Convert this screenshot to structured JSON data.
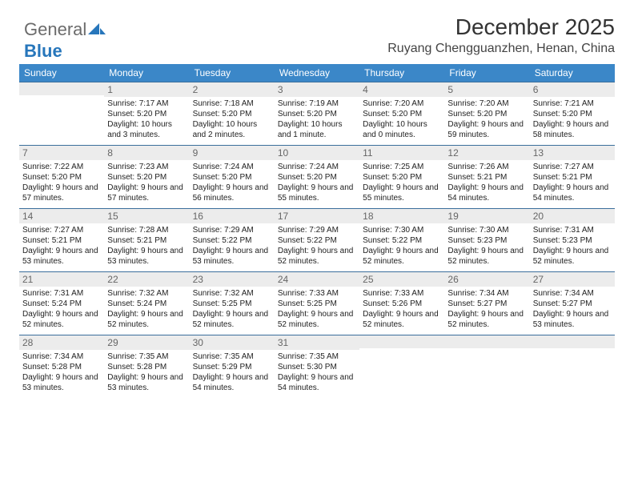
{
  "brand": {
    "part1": "General",
    "part2": "Blue"
  },
  "title": "December 2025",
  "location": "Ruyang Chengguanzhen, Henan, China",
  "colors": {
    "header_bg": "#3b87c8",
    "header_text": "#ffffff",
    "daynum_bg": "#ececec",
    "daynum_text": "#666666",
    "border": "#3b6f9c",
    "brand_gray": "#6b6b6b",
    "brand_blue": "#2776bb"
  },
  "weekdays": [
    "Sunday",
    "Monday",
    "Tuesday",
    "Wednesday",
    "Thursday",
    "Friday",
    "Saturday"
  ],
  "weeks": [
    [
      {
        "n": "",
        "sr": "",
        "ss": "",
        "dl": ""
      },
      {
        "n": "1",
        "sr": "Sunrise: 7:17 AM",
        "ss": "Sunset: 5:20 PM",
        "dl": "Daylight: 10 hours and 3 minutes."
      },
      {
        "n": "2",
        "sr": "Sunrise: 7:18 AM",
        "ss": "Sunset: 5:20 PM",
        "dl": "Daylight: 10 hours and 2 minutes."
      },
      {
        "n": "3",
        "sr": "Sunrise: 7:19 AM",
        "ss": "Sunset: 5:20 PM",
        "dl": "Daylight: 10 hours and 1 minute."
      },
      {
        "n": "4",
        "sr": "Sunrise: 7:20 AM",
        "ss": "Sunset: 5:20 PM",
        "dl": "Daylight: 10 hours and 0 minutes."
      },
      {
        "n": "5",
        "sr": "Sunrise: 7:20 AM",
        "ss": "Sunset: 5:20 PM",
        "dl": "Daylight: 9 hours and 59 minutes."
      },
      {
        "n": "6",
        "sr": "Sunrise: 7:21 AM",
        "ss": "Sunset: 5:20 PM",
        "dl": "Daylight: 9 hours and 58 minutes."
      }
    ],
    [
      {
        "n": "7",
        "sr": "Sunrise: 7:22 AM",
        "ss": "Sunset: 5:20 PM",
        "dl": "Daylight: 9 hours and 57 minutes."
      },
      {
        "n": "8",
        "sr": "Sunrise: 7:23 AM",
        "ss": "Sunset: 5:20 PM",
        "dl": "Daylight: 9 hours and 57 minutes."
      },
      {
        "n": "9",
        "sr": "Sunrise: 7:24 AM",
        "ss": "Sunset: 5:20 PM",
        "dl": "Daylight: 9 hours and 56 minutes."
      },
      {
        "n": "10",
        "sr": "Sunrise: 7:24 AM",
        "ss": "Sunset: 5:20 PM",
        "dl": "Daylight: 9 hours and 55 minutes."
      },
      {
        "n": "11",
        "sr": "Sunrise: 7:25 AM",
        "ss": "Sunset: 5:20 PM",
        "dl": "Daylight: 9 hours and 55 minutes."
      },
      {
        "n": "12",
        "sr": "Sunrise: 7:26 AM",
        "ss": "Sunset: 5:21 PM",
        "dl": "Daylight: 9 hours and 54 minutes."
      },
      {
        "n": "13",
        "sr": "Sunrise: 7:27 AM",
        "ss": "Sunset: 5:21 PM",
        "dl": "Daylight: 9 hours and 54 minutes."
      }
    ],
    [
      {
        "n": "14",
        "sr": "Sunrise: 7:27 AM",
        "ss": "Sunset: 5:21 PM",
        "dl": "Daylight: 9 hours and 53 minutes."
      },
      {
        "n": "15",
        "sr": "Sunrise: 7:28 AM",
        "ss": "Sunset: 5:21 PM",
        "dl": "Daylight: 9 hours and 53 minutes."
      },
      {
        "n": "16",
        "sr": "Sunrise: 7:29 AM",
        "ss": "Sunset: 5:22 PM",
        "dl": "Daylight: 9 hours and 53 minutes."
      },
      {
        "n": "17",
        "sr": "Sunrise: 7:29 AM",
        "ss": "Sunset: 5:22 PM",
        "dl": "Daylight: 9 hours and 52 minutes."
      },
      {
        "n": "18",
        "sr": "Sunrise: 7:30 AM",
        "ss": "Sunset: 5:22 PM",
        "dl": "Daylight: 9 hours and 52 minutes."
      },
      {
        "n": "19",
        "sr": "Sunrise: 7:30 AM",
        "ss": "Sunset: 5:23 PM",
        "dl": "Daylight: 9 hours and 52 minutes."
      },
      {
        "n": "20",
        "sr": "Sunrise: 7:31 AM",
        "ss": "Sunset: 5:23 PM",
        "dl": "Daylight: 9 hours and 52 minutes."
      }
    ],
    [
      {
        "n": "21",
        "sr": "Sunrise: 7:31 AM",
        "ss": "Sunset: 5:24 PM",
        "dl": "Daylight: 9 hours and 52 minutes."
      },
      {
        "n": "22",
        "sr": "Sunrise: 7:32 AM",
        "ss": "Sunset: 5:24 PM",
        "dl": "Daylight: 9 hours and 52 minutes."
      },
      {
        "n": "23",
        "sr": "Sunrise: 7:32 AM",
        "ss": "Sunset: 5:25 PM",
        "dl": "Daylight: 9 hours and 52 minutes."
      },
      {
        "n": "24",
        "sr": "Sunrise: 7:33 AM",
        "ss": "Sunset: 5:25 PM",
        "dl": "Daylight: 9 hours and 52 minutes."
      },
      {
        "n": "25",
        "sr": "Sunrise: 7:33 AM",
        "ss": "Sunset: 5:26 PM",
        "dl": "Daylight: 9 hours and 52 minutes."
      },
      {
        "n": "26",
        "sr": "Sunrise: 7:34 AM",
        "ss": "Sunset: 5:27 PM",
        "dl": "Daylight: 9 hours and 52 minutes."
      },
      {
        "n": "27",
        "sr": "Sunrise: 7:34 AM",
        "ss": "Sunset: 5:27 PM",
        "dl": "Daylight: 9 hours and 53 minutes."
      }
    ],
    [
      {
        "n": "28",
        "sr": "Sunrise: 7:34 AM",
        "ss": "Sunset: 5:28 PM",
        "dl": "Daylight: 9 hours and 53 minutes."
      },
      {
        "n": "29",
        "sr": "Sunrise: 7:35 AM",
        "ss": "Sunset: 5:28 PM",
        "dl": "Daylight: 9 hours and 53 minutes."
      },
      {
        "n": "30",
        "sr": "Sunrise: 7:35 AM",
        "ss": "Sunset: 5:29 PM",
        "dl": "Daylight: 9 hours and 54 minutes."
      },
      {
        "n": "31",
        "sr": "Sunrise: 7:35 AM",
        "ss": "Sunset: 5:30 PM",
        "dl": "Daylight: 9 hours and 54 minutes."
      },
      {
        "n": "",
        "sr": "",
        "ss": "",
        "dl": ""
      },
      {
        "n": "",
        "sr": "",
        "ss": "",
        "dl": ""
      },
      {
        "n": "",
        "sr": "",
        "ss": "",
        "dl": ""
      }
    ]
  ]
}
